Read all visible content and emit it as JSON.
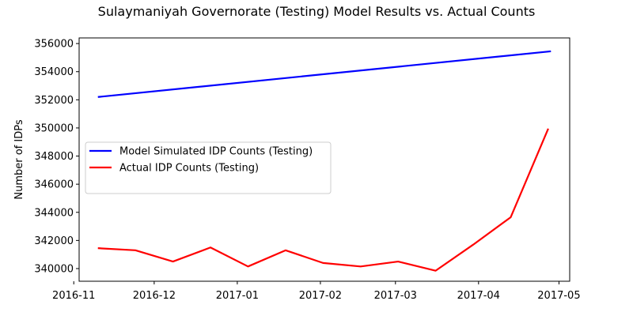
{
  "chart_data": {
    "type": "line",
    "title": "Sulaymaniyah Governorate (Testing) Model Results vs. Actual Counts",
    "xlabel": "",
    "ylabel": "Number of IDPs",
    "xlim": [
      "2016-11-03",
      "2017-05-05"
    ],
    "ylim": [
      339100,
      356400
    ],
    "x_ticks": [
      "2016-11-01",
      "2016-12-01",
      "2017-01-01",
      "2017-02-01",
      "2017-03-01",
      "2017-04-01",
      "2017-05-01"
    ],
    "x_tick_labels": [
      "2016-11",
      "2016-12",
      "2017-01",
      "2017-02",
      "2017-03",
      "2017-04",
      "2017-05"
    ],
    "y_ticks": [
      340000,
      342000,
      344000,
      346000,
      348000,
      350000,
      352000,
      354000,
      356000
    ],
    "y_tick_labels": [
      "340000",
      "342000",
      "344000",
      "346000",
      "348000",
      "350000",
      "352000",
      "354000",
      "356000"
    ],
    "grid": false,
    "legend_position": "center-left",
    "series": [
      {
        "name": "Model Simulated IDP Counts (Testing)",
        "color": "#0000ff",
        "points": [
          {
            "x": "2016-11-10",
            "y": 352200
          },
          {
            "x": "2017-04-28",
            "y": 355450
          }
        ]
      },
      {
        "name": "Actual IDP Counts (Testing)",
        "color": "#ff0000",
        "points": [
          {
            "x": "2016-11-10",
            "y": 341450
          },
          {
            "x": "2016-11-24",
            "y": 341300
          },
          {
            "x": "2016-12-08",
            "y": 340500
          },
          {
            "x": "2016-12-22",
            "y": 341500
          },
          {
            "x": "2017-01-05",
            "y": 340150
          },
          {
            "x": "2017-01-19",
            "y": 341300
          },
          {
            "x": "2017-02-02",
            "y": 340400
          },
          {
            "x": "2017-02-16",
            "y": 340150
          },
          {
            "x": "2017-03-02",
            "y": 340500
          },
          {
            "x": "2017-03-16",
            "y": 339850
          },
          {
            "x": "2017-03-30",
            "y": 341700
          },
          {
            "x": "2017-04-13",
            "y": 343650
          },
          {
            "x": "2017-04-27",
            "y": 349950
          }
        ]
      }
    ]
  }
}
